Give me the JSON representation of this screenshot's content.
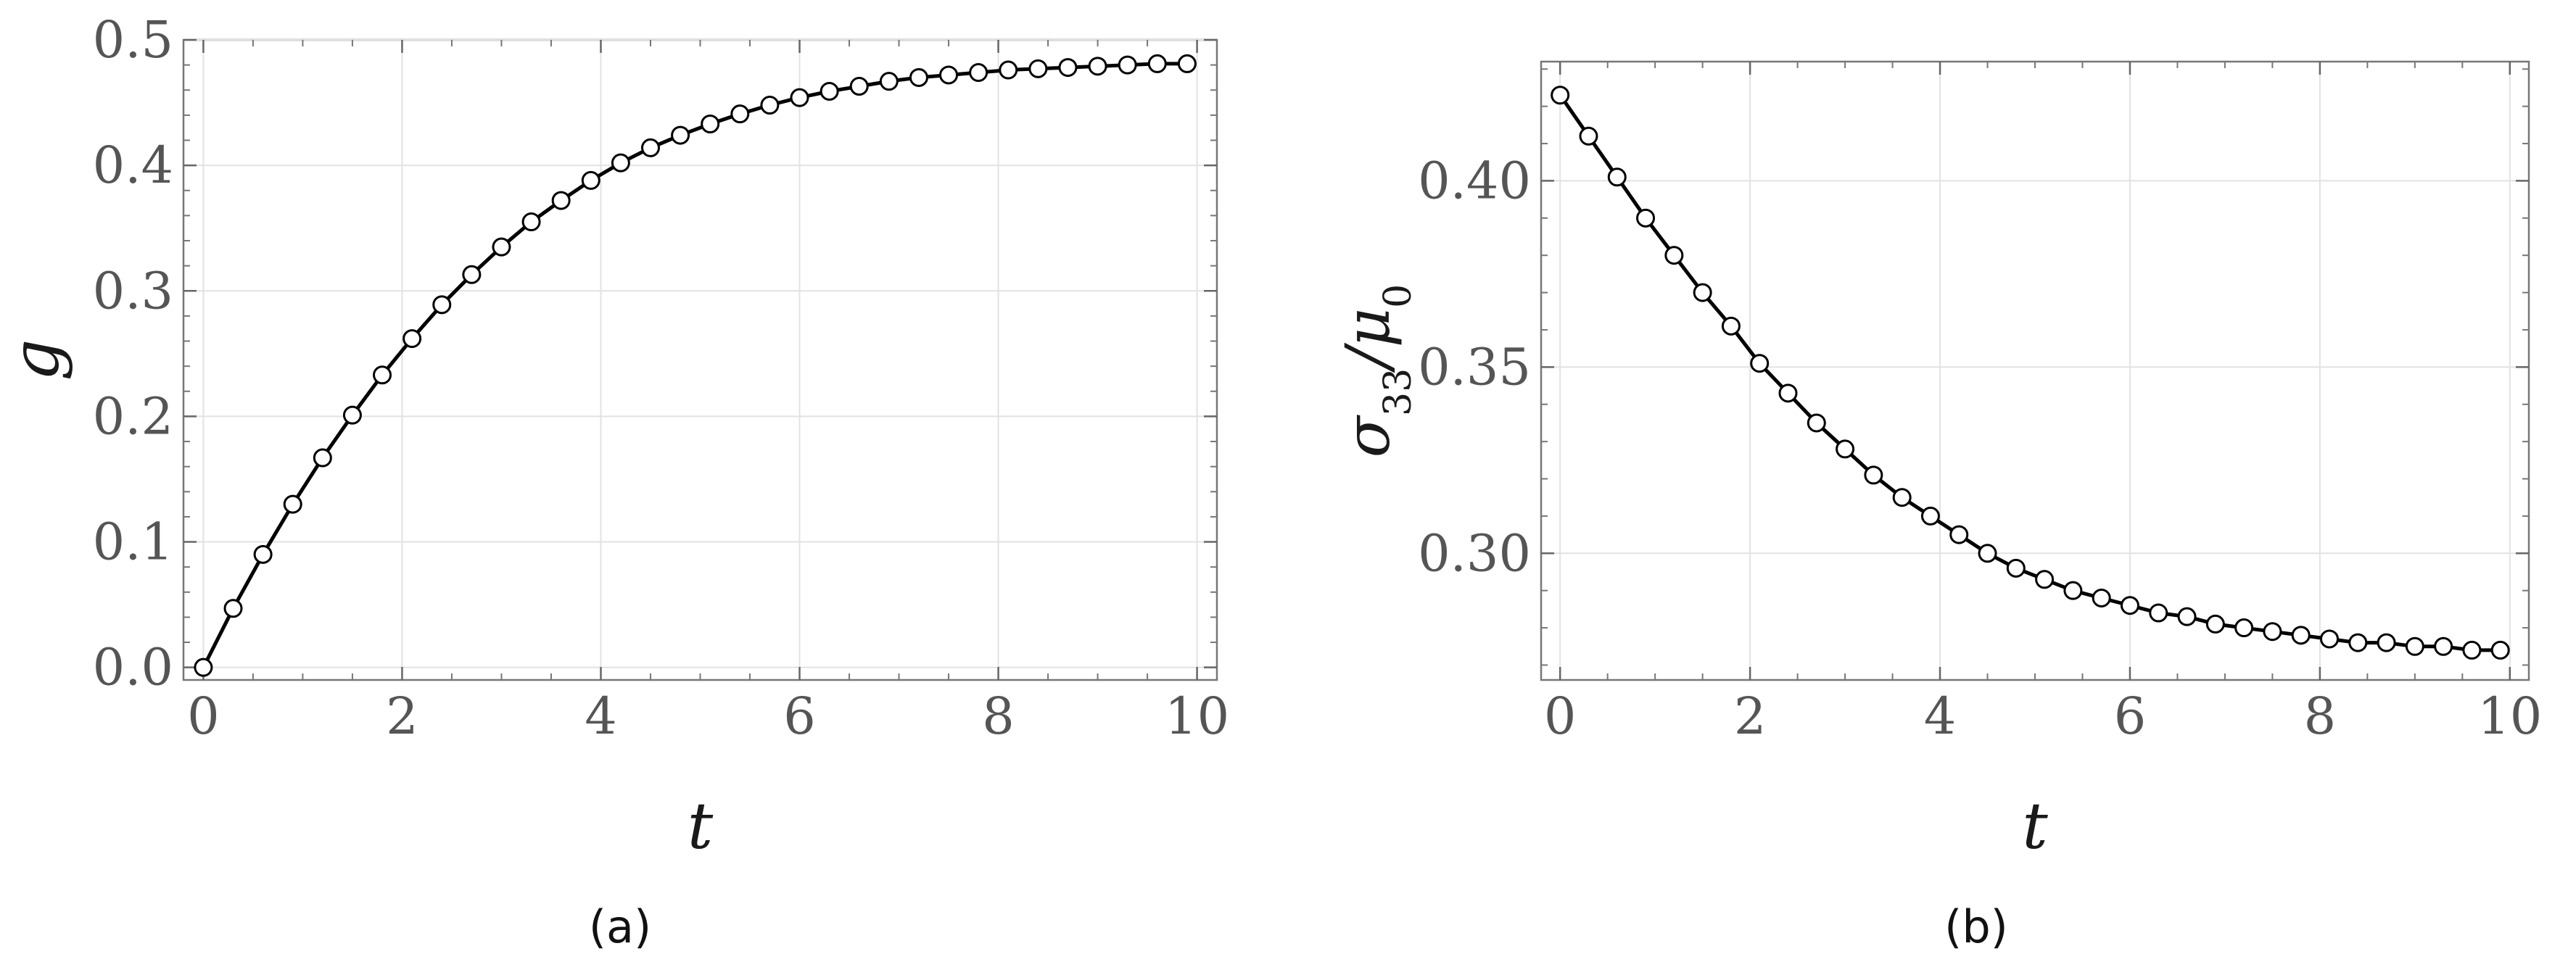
{
  "chart_data": [
    {
      "type": "line",
      "caption": "(a)",
      "xlabel": "t",
      "ylabel": "g",
      "xlim": [
        -0.2,
        10.2
      ],
      "ylim": [
        -0.01,
        0.5
      ],
      "xticks": [
        "0",
        "2",
        "4",
        "6",
        "8",
        "10"
      ],
      "yticks": [
        "0.0",
        "0.1",
        "0.2",
        "0.3",
        "0.4",
        "0.5"
      ],
      "grid": true,
      "markers": "open circles",
      "series": [
        {
          "x": [
            0,
            0.3,
            0.6,
            0.9,
            1.2,
            1.5,
            1.8,
            2.1,
            2.4,
            2.7,
            3.0,
            3.3,
            3.6,
            3.9,
            4.2,
            4.5,
            4.8,
            5.1,
            5.4,
            5.7,
            6.0,
            6.3,
            6.6,
            6.9,
            7.2,
            7.5,
            7.8,
            8.1,
            8.4,
            8.7,
            9.0,
            9.3,
            9.6,
            9.9
          ],
          "y": [
            0.0,
            0.047,
            0.09,
            0.13,
            0.167,
            0.201,
            0.233,
            0.262,
            0.289,
            0.313,
            0.335,
            0.355,
            0.372,
            0.388,
            0.402,
            0.414,
            0.424,
            0.433,
            0.441,
            0.448,
            0.454,
            0.459,
            0.463,
            0.467,
            0.47,
            0.472,
            0.474,
            0.476,
            0.477,
            0.478,
            0.479,
            0.48,
            0.481,
            0.481
          ]
        }
      ]
    },
    {
      "type": "line",
      "caption": "(b)",
      "xlabel": "t",
      "ylabel": "σ33/μ0",
      "xlim": [
        -0.2,
        10.2
      ],
      "ylim": [
        0.266,
        0.432
      ],
      "xticks": [
        "0",
        "2",
        "4",
        "6",
        "8",
        "10"
      ],
      "yticks": [
        "0.30",
        "0.35",
        "0.40"
      ],
      "grid": true,
      "markers": "open circles",
      "series": [
        {
          "x": [
            0,
            0.3,
            0.6,
            0.9,
            1.2,
            1.5,
            1.8,
            2.1,
            2.4,
            2.7,
            3.0,
            3.3,
            3.6,
            3.9,
            4.2,
            4.5,
            4.8,
            5.1,
            5.4,
            5.7,
            6.0,
            6.3,
            6.6,
            6.9,
            7.2,
            7.5,
            7.8,
            8.1,
            8.4,
            8.7,
            9.0,
            9.3,
            9.6,
            9.9
          ],
          "y": [
            0.423,
            0.412,
            0.401,
            0.39,
            0.38,
            0.37,
            0.361,
            0.351,
            0.343,
            0.335,
            0.328,
            0.321,
            0.315,
            0.31,
            0.305,
            0.3,
            0.296,
            0.293,
            0.29,
            0.288,
            0.286,
            0.284,
            0.283,
            0.281,
            0.28,
            0.279,
            0.278,
            0.277,
            0.276,
            0.276,
            0.275,
            0.275,
            0.274,
            0.274
          ]
        }
      ]
    }
  ]
}
